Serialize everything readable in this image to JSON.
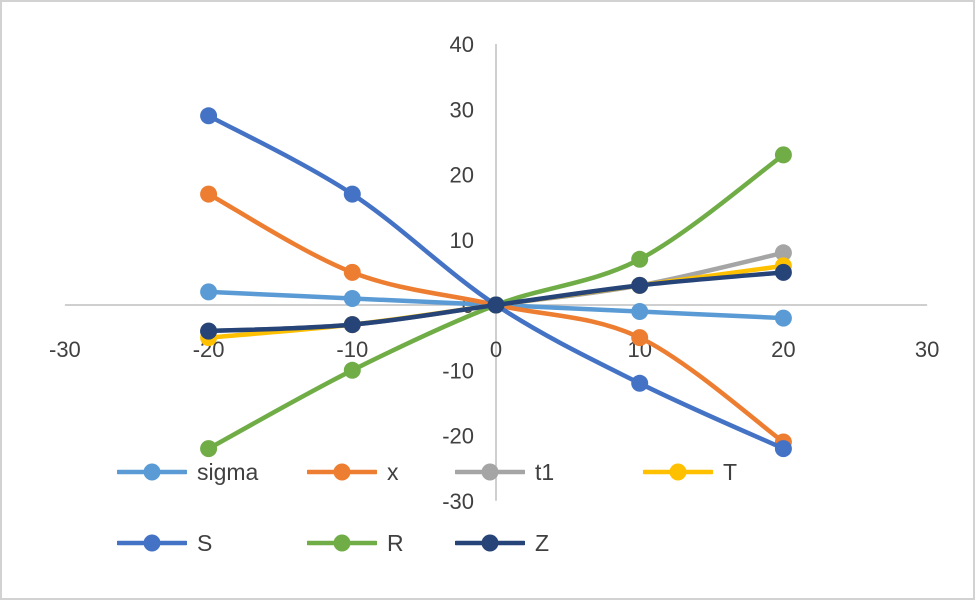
{
  "chart_data": {
    "type": "line",
    "title": "",
    "xlabel": "",
    "ylabel": "",
    "x": [
      -20,
      -10,
      0,
      10,
      20
    ],
    "series": [
      {
        "name": "sigma",
        "color": "#5B9BD5",
        "values": [
          2,
          1,
          0,
          -1,
          -2
        ]
      },
      {
        "name": "x",
        "color": "#ED7D31",
        "values": [
          17,
          5,
          0,
          -5,
          -21
        ]
      },
      {
        "name": "t1",
        "color": "#A5A5A5",
        "values": [
          -4,
          -3,
          0,
          3,
          8
        ]
      },
      {
        "name": "T",
        "color": "#FFC000",
        "values": [
          -5,
          -3,
          0,
          3,
          6
        ]
      },
      {
        "name": "S",
        "color": "#4472C4",
        "values": [
          29,
          17,
          0,
          -12,
          -22
        ]
      },
      {
        "name": "R",
        "color": "#70AD47",
        "values": [
          -22,
          -10,
          0,
          7,
          23
        ]
      },
      {
        "name": "Z",
        "color": "#264478",
        "values": [
          -4,
          -3,
          0,
          3,
          5
        ]
      }
    ],
    "x_ticks": [
      -30,
      -20,
      -10,
      0,
      10,
      20,
      30
    ],
    "y_ticks": [
      40,
      30,
      20,
      10,
      0,
      -10,
      -20,
      -30
    ],
    "xlim": [
      -30,
      30
    ],
    "ylim": [
      -30,
      40
    ],
    "grid": "off",
    "legend_position": "bottom",
    "legend_rows": [
      [
        "sigma",
        "x",
        "t1",
        "T"
      ],
      [
        "S",
        "R",
        "Z"
      ]
    ],
    "axis_color": "#BFBFBF",
    "tick_color": "#404040"
  }
}
